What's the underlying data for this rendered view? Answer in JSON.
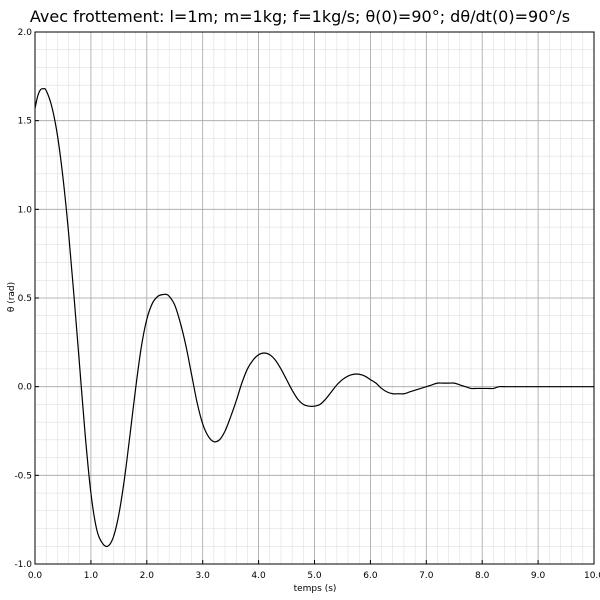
{
  "chart_data": {
    "type": "line",
    "title": "Avec frottement: l=1m; m=1kg; f=1kg/s; θ(0)=90°; dθ/dt(0)=90°/s",
    "xlabel": "temps (s)",
    "ylabel": "θ (rad)",
    "xlim": [
      0.0,
      10.0
    ],
    "ylim": [
      -1.0,
      2.0
    ],
    "x_ticks": [
      "0.0",
      "1.0",
      "2.0",
      "3.0",
      "4.0",
      "5.0",
      "6.0",
      "7.0",
      "8.0",
      "9.0",
      "10.0"
    ],
    "y_ticks": [
      "-1.0",
      "-0.5",
      "0.0",
      "0.5",
      "1.0",
      "1.5",
      "2.0"
    ],
    "grid": {
      "major": true,
      "minor": true
    },
    "series": [
      {
        "color": "#000000",
        "x": [
          0.0,
          0.05,
          0.1,
          0.15,
          0.2,
          0.3,
          0.4,
          0.5,
          0.6,
          0.7,
          0.8,
          0.9,
          1.0,
          1.1,
          1.2,
          1.3,
          1.4,
          1.5,
          1.6,
          1.7,
          1.8,
          1.9,
          2.0,
          2.1,
          2.2,
          2.3,
          2.35,
          2.4,
          2.5,
          2.6,
          2.7,
          2.8,
          2.9,
          3.0,
          3.1,
          3.2,
          3.3,
          3.4,
          3.5,
          3.6,
          3.7,
          3.8,
          3.9,
          4.0,
          4.1,
          4.2,
          4.3,
          4.4,
          4.5,
          4.6,
          4.7,
          4.8,
          4.9,
          5.0,
          5.1,
          5.2,
          5.3,
          5.4,
          5.5,
          5.6,
          5.7,
          5.8,
          5.9,
          6.0,
          6.1,
          6.2,
          6.3,
          6.4,
          6.5,
          6.6,
          6.7,
          6.8,
          6.9,
          7.0,
          7.1,
          7.2,
          7.3,
          7.4,
          7.5,
          7.6,
          7.7,
          7.8,
          7.9,
          8.0,
          8.1,
          8.2,
          8.3,
          8.4,
          8.5,
          8.6,
          8.7,
          8.8,
          8.9,
          9.0,
          9.1,
          9.2,
          9.3,
          9.4,
          9.5,
          9.6,
          9.7,
          9.8,
          9.9,
          10.0
        ],
        "y": [
          1.57,
          1.64,
          1.675,
          1.68,
          1.67,
          1.58,
          1.42,
          1.18,
          0.87,
          0.5,
          0.11,
          -0.28,
          -0.6,
          -0.8,
          -0.88,
          -0.9,
          -0.85,
          -0.72,
          -0.52,
          -0.27,
          -0.01,
          0.22,
          0.38,
          0.47,
          0.51,
          0.52,
          0.52,
          0.51,
          0.46,
          0.36,
          0.23,
          0.07,
          -0.09,
          -0.21,
          -0.28,
          -0.31,
          -0.3,
          -0.25,
          -0.17,
          -0.08,
          0.02,
          0.1,
          0.15,
          0.18,
          0.19,
          0.18,
          0.15,
          0.1,
          0.04,
          -0.02,
          -0.07,
          -0.1,
          -0.11,
          -0.11,
          -0.1,
          -0.07,
          -0.03,
          0.01,
          0.04,
          0.06,
          0.07,
          0.07,
          0.06,
          0.04,
          0.02,
          -0.01,
          -0.03,
          -0.04,
          -0.04,
          -0.04,
          -0.03,
          -0.02,
          -0.01,
          0.0,
          0.01,
          0.02,
          0.02,
          0.02,
          0.02,
          0.01,
          0.0,
          -0.01,
          -0.01,
          -0.01,
          -0.01,
          -0.01,
          0.0,
          0.0,
          0.0,
          0.0,
          0.0,
          0.0,
          0.0,
          0.0,
          0.0,
          0.0,
          0.0,
          0.0,
          0.0,
          0.0,
          0.0,
          0.0,
          0.0,
          0.0
        ]
      }
    ]
  }
}
